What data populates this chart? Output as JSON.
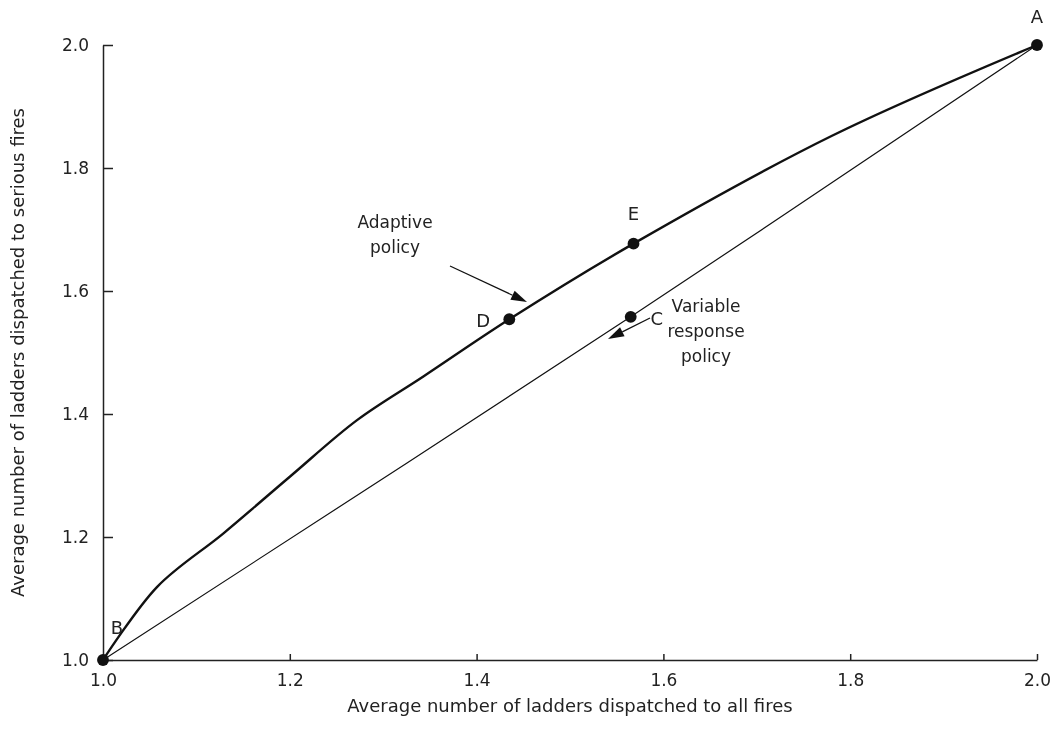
{
  "chart_data": {
    "type": "line",
    "xlabel": "Average number of ladders dispatched to all fires",
    "ylabel": "Average number of ladders dispatched to serious fires",
    "xlim": [
      1.0,
      2.0
    ],
    "ylim": [
      1.0,
      2.0
    ],
    "xticks": [
      {
        "value": 1.0,
        "label": "1.0"
      },
      1.2,
      1.4,
      1.6,
      1.8,
      {
        "value": 2.0,
        "label": "2.0"
      }
    ],
    "yticks": [
      {
        "value": 1.0,
        "label": "1.0"
      },
      1.2,
      1.4,
      1.6,
      1.8,
      {
        "value": 2.0,
        "label": "2.0"
      }
    ],
    "grid": false,
    "line_style": "solid",
    "series": [
      {
        "color": "#111111",
        "marker": "none",
        "x": [
          1.0,
          1.058,
          1.129,
          1.2,
          1.272,
          1.343,
          1.435,
          1.568,
          1.78,
          2.0
        ],
        "values": [
          1.0,
          1.119,
          1.206,
          1.298,
          1.39,
          1.461,
          1.554,
          1.677,
          1.852,
          2.0
        ]
      },
      {
        "color": "#111111",
        "marker": "none",
        "x": [
          1.0,
          1.565,
          2.0
        ],
        "values": [
          1.0,
          1.558,
          2.0
        ]
      },
      {
        "type": "scatter",
        "color": "#111111",
        "marker": "circle",
        "x": [
          2.0,
          1.0,
          1.565,
          1.435,
          1.568
        ],
        "values": [
          2.0,
          1.0,
          1.558,
          1.554,
          1.677
        ]
      }
    ],
    "annotations": [
      {
        "text": "A",
        "x": 2.0,
        "y": 2.0
      },
      {
        "text": "B",
        "x": 1.0,
        "y": 1.0
      },
      {
        "text": "C",
        "x": 1.565,
        "y": 1.558
      },
      {
        "text": "D",
        "x": 1.435,
        "y": 1.554
      },
      {
        "text": "E",
        "x": 1.568,
        "y": 1.677
      },
      "Adaptive policy",
      "Variable response policy"
    ]
  }
}
